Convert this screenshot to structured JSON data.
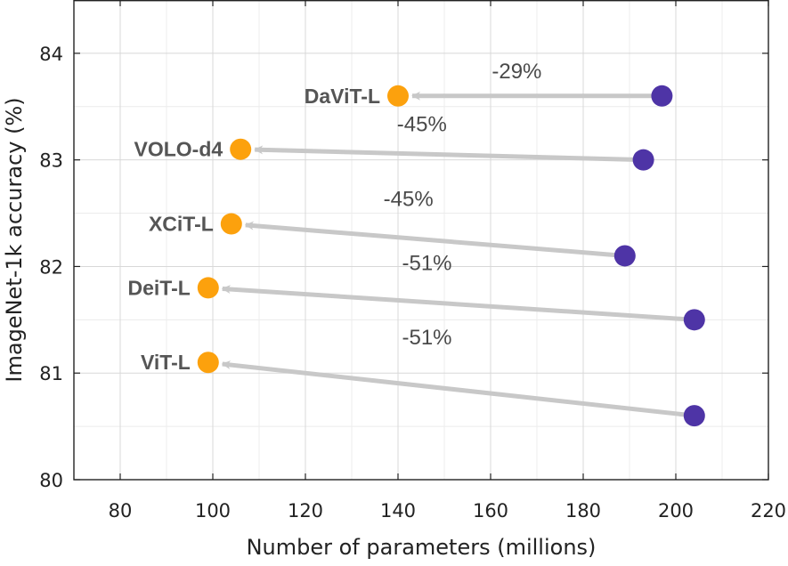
{
  "chart_data": {
    "type": "scatter",
    "xlabel": "Number of parameters (millions)",
    "ylabel": "ImageNet-1k accuracy (%)",
    "xlim": [
      70,
      220
    ],
    "ylim": [
      80,
      84.5
    ],
    "xticks": [
      80,
      100,
      120,
      140,
      160,
      180,
      200,
      220
    ],
    "yticks": [
      80,
      81,
      82,
      83,
      84
    ],
    "grid": true,
    "colors": {
      "reduced": "#fca10d",
      "original": "#4e34a6",
      "arrow": "#c8c8c8"
    },
    "models": [
      {
        "name": "DaViT-L",
        "from": {
          "x": 197,
          "y": 83.6
        },
        "to": {
          "x": 140,
          "y": 83.6
        },
        "reduction": "-29%"
      },
      {
        "name": "VOLO-d4",
        "from": {
          "x": 193,
          "y": 83.0
        },
        "to": {
          "x": 106,
          "y": 83.1
        },
        "reduction": "-45%"
      },
      {
        "name": "XCiT-L",
        "from": {
          "x": 189,
          "y": 82.1
        },
        "to": {
          "x": 104,
          "y": 82.4
        },
        "reduction": "-45%"
      },
      {
        "name": "DeiT-L",
        "from": {
          "x": 204,
          "y": 81.5
        },
        "to": {
          "x": 99,
          "y": 81.8
        },
        "reduction": "-51%"
      },
      {
        "name": "ViT-L",
        "from": {
          "x": 204,
          "y": 80.6
        },
        "to": {
          "x": 99,
          "y": 81.1
        },
        "reduction": "-51%"
      }
    ]
  }
}
